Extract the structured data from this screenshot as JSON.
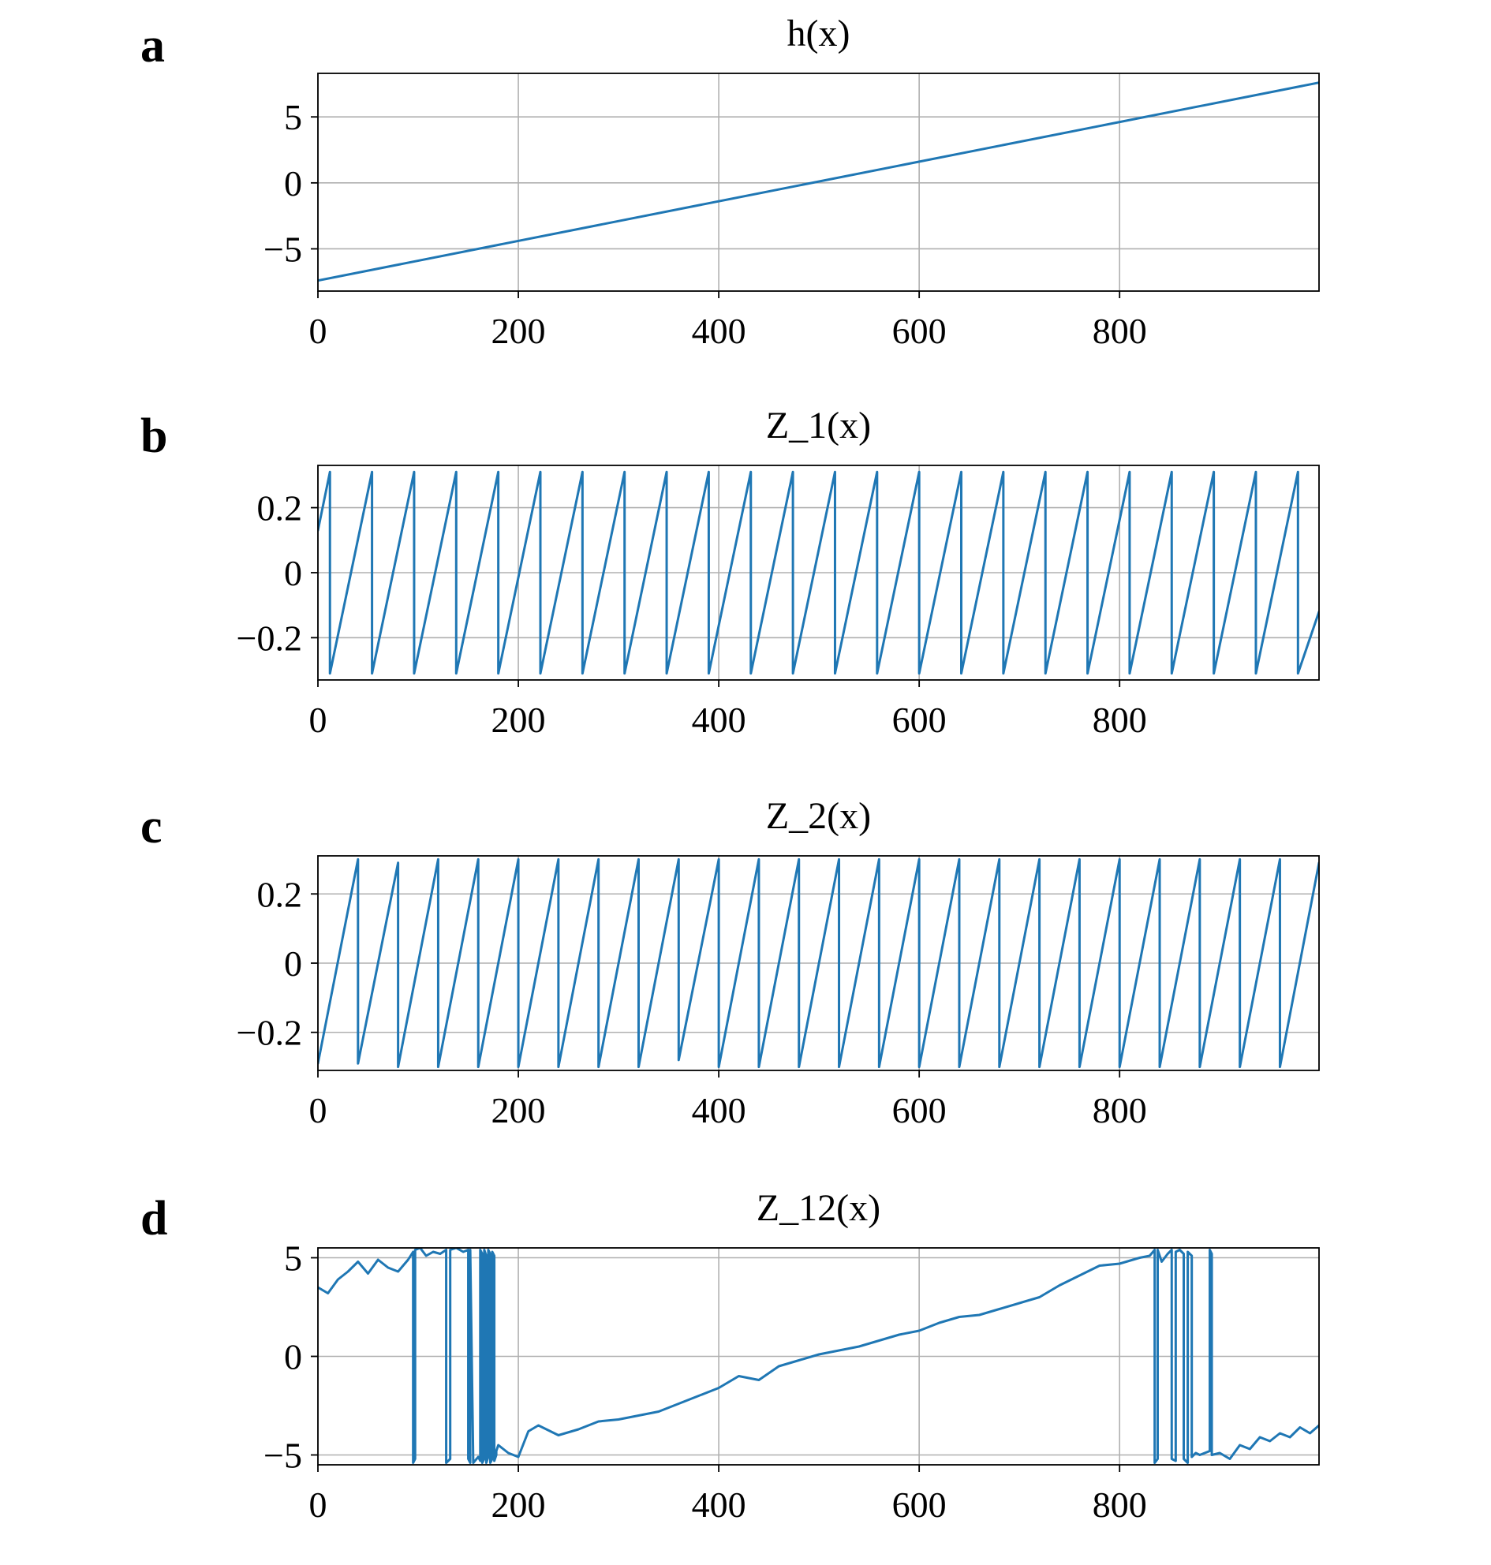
{
  "colors": {
    "series": "#1f77b4",
    "grid": "#b0b0b0",
    "axes": "#000000"
  },
  "chart_data": [
    {
      "panel": "a",
      "type": "line",
      "title": "h(x)",
      "xlabel": "",
      "ylabel": "",
      "xlim": [
        0,
        999
      ],
      "ylim": [
        -8.2,
        8.3
      ],
      "xticks": [
        0,
        200,
        400,
        600,
        800
      ],
      "xtick_labels": [
        "0",
        "200",
        "400",
        "600",
        "800"
      ],
      "yticks": [
        -5,
        0,
        5
      ],
      "ytick_labels": [
        "−5",
        "0",
        "5"
      ],
      "grid": true,
      "series": [
        {
          "x": [
            0,
            999
          ],
          "y": [
            -7.4,
            7.6
          ]
        }
      ]
    },
    {
      "panel": "b",
      "type": "line",
      "title": "Z_1(x)",
      "xlabel": "",
      "ylabel": "",
      "xlim": [
        0,
        999
      ],
      "ylim": [
        -0.33,
        0.33
      ],
      "xticks": [
        0,
        200,
        400,
        600,
        800
      ],
      "xtick_labels": [
        "0",
        "200",
        "400",
        "600",
        "800"
      ],
      "yticks": [
        -0.2,
        0,
        0.2
      ],
      "ytick_labels": [
        "−0.2",
        "0",
        "0.2"
      ],
      "grid": true,
      "series": [
        {
          "x": [
            0,
            12,
            12,
            54,
            54,
            96,
            96,
            138,
            138,
            180,
            180,
            222,
            222,
            264,
            264,
            306,
            306,
            348,
            348,
            390,
            390,
            432,
            432,
            474,
            474,
            516,
            516,
            558,
            558,
            600,
            600,
            642,
            642,
            684,
            684,
            726,
            726,
            768,
            768,
            810,
            810,
            852,
            852,
            894,
            894,
            936,
            936,
            978,
            978,
            999
          ],
          "y": [
            0.13,
            0.31,
            -0.31,
            0.31,
            -0.31,
            0.31,
            -0.31,
            0.31,
            -0.31,
            0.31,
            -0.31,
            0.31,
            -0.31,
            0.31,
            -0.31,
            0.31,
            -0.31,
            0.31,
            -0.31,
            0.31,
            -0.31,
            0.31,
            -0.31,
            0.31,
            -0.31,
            0.31,
            -0.31,
            0.31,
            -0.31,
            0.31,
            -0.31,
            0.31,
            -0.31,
            0.31,
            -0.31,
            0.31,
            -0.31,
            0.31,
            -0.31,
            0.31,
            -0.31,
            0.31,
            -0.31,
            0.31,
            -0.31,
            0.31,
            -0.31,
            0.31,
            -0.31,
            -0.12
          ]
        }
      ]
    },
    {
      "panel": "c",
      "type": "line",
      "title": "Z_2(x)",
      "xlabel": "",
      "ylabel": "",
      "xlim": [
        0,
        999
      ],
      "ylim": [
        -0.31,
        0.31
      ],
      "xticks": [
        0,
        200,
        400,
        600,
        800
      ],
      "xtick_labels": [
        "0",
        "200",
        "400",
        "600",
        "800"
      ],
      "yticks": [
        -0.2,
        0,
        0.2
      ],
      "ytick_labels": [
        "−0.2",
        "0",
        "0.2"
      ],
      "grid": true,
      "series": [
        {
          "x": [
            0,
            40,
            40,
            80,
            80,
            120,
            120,
            160,
            160,
            200,
            200,
            240,
            240,
            280,
            280,
            320,
            320,
            360,
            360,
            400,
            400,
            440,
            440,
            480,
            480,
            520,
            520,
            560,
            560,
            600,
            600,
            640,
            640,
            680,
            680,
            720,
            720,
            760,
            760,
            800,
            800,
            840,
            840,
            880,
            880,
            920,
            920,
            960,
            960,
            999
          ],
          "y": [
            -0.29,
            0.3,
            -0.29,
            0.29,
            -0.3,
            0.3,
            -0.3,
            0.3,
            -0.3,
            0.3,
            -0.3,
            0.3,
            -0.3,
            0.3,
            -0.3,
            0.3,
            -0.3,
            0.3,
            -0.28,
            0.3,
            -0.3,
            0.3,
            -0.3,
            0.3,
            -0.3,
            0.3,
            -0.3,
            0.3,
            -0.3,
            0.3,
            -0.3,
            0.3,
            -0.3,
            0.3,
            -0.3,
            0.3,
            -0.3,
            0.3,
            -0.3,
            0.3,
            -0.3,
            0.3,
            -0.3,
            0.3,
            -0.3,
            0.3,
            -0.3,
            0.3,
            -0.3,
            0.29
          ]
        }
      ]
    },
    {
      "panel": "d",
      "type": "line",
      "title": "Z_12(x)",
      "xlabel": "",
      "ylabel": "",
      "xlim": [
        0,
        999
      ],
      "ylim": [
        -5.5,
        5.5
      ],
      "xticks": [
        0,
        200,
        400,
        600,
        800
      ],
      "xtick_labels": [
        "0",
        "200",
        "400",
        "600",
        "800"
      ],
      "yticks": [
        -5,
        0,
        5
      ],
      "ytick_labels": [
        "−5",
        "0",
        "5"
      ],
      "grid": true,
      "series": [
        {
          "x": [
            0,
            10,
            20,
            30,
            40,
            50,
            60,
            70,
            80,
            90,
            95,
            95,
            97,
            97,
            102,
            108,
            115,
            122,
            128,
            128,
            132,
            132,
            138,
            145,
            150,
            150,
            152,
            152,
            155,
            160,
            162,
            162,
            164,
            164,
            166,
            166,
            168,
            168,
            170,
            170,
            172,
            172,
            174,
            174,
            176,
            176,
            178,
            178,
            180,
            190,
            200,
            210,
            220,
            240,
            260,
            280,
            300,
            320,
            340,
            360,
            380,
            400,
            420,
            440,
            460,
            480,
            500,
            520,
            540,
            560,
            580,
            600,
            620,
            640,
            660,
            680,
            700,
            720,
            740,
            760,
            780,
            800,
            820,
            830,
            835,
            835,
            838,
            838,
            842,
            848,
            852,
            852,
            856,
            856,
            860,
            864,
            864,
            868,
            868,
            872,
            872,
            876,
            880,
            890,
            890,
            892,
            892,
            900,
            910,
            920,
            930,
            940,
            950,
            960,
            970,
            980,
            990,
            999
          ],
          "y": [
            3.5,
            3.2,
            3.9,
            4.3,
            4.8,
            4.2,
            4.9,
            4.5,
            4.3,
            4.9,
            5.3,
            -5.4,
            -5.2,
            5.4,
            5.5,
            5.1,
            5.3,
            5.2,
            5.4,
            -5.4,
            -5.2,
            5.4,
            5.5,
            5.3,
            5.4,
            -5.2,
            -5.4,
            5.4,
            -5.4,
            -5.1,
            -5.3,
            5.4,
            5.2,
            -5.4,
            -5.2,
            5.4,
            5.1,
            -5.4,
            -5.1,
            5.4,
            5.2,
            -5.4,
            -5.2,
            5.3,
            5.1,
            -5.3,
            -5.0,
            -4.8,
            -4.5,
            -4.9,
            -5.1,
            -3.8,
            -3.5,
            -4.0,
            -3.7,
            -3.3,
            -3.2,
            -3.0,
            -2.8,
            -2.4,
            -2.0,
            -1.6,
            -1.0,
            -1.2,
            -0.5,
            -0.2,
            0.1,
            0.3,
            0.5,
            0.8,
            1.1,
            1.3,
            1.7,
            2.0,
            2.1,
            2.4,
            2.7,
            3.0,
            3.6,
            4.1,
            4.6,
            4.7,
            5.0,
            5.1,
            5.4,
            -5.4,
            -5.2,
            5.4,
            4.8,
            5.2,
            5.4,
            -5.2,
            -5.3,
            5.3,
            5.4,
            5.2,
            -5.2,
            -5.4,
            5.3,
            5.1,
            -5.1,
            -4.9,
            -5.0,
            -4.8,
            5.4,
            5.2,
            -5.0,
            -4.9,
            -5.2,
            -4.5,
            -4.7,
            -4.1,
            -4.3,
            -3.9,
            -4.1,
            -3.6,
            -3.9,
            -3.5
          ]
        }
      ]
    }
  ]
}
